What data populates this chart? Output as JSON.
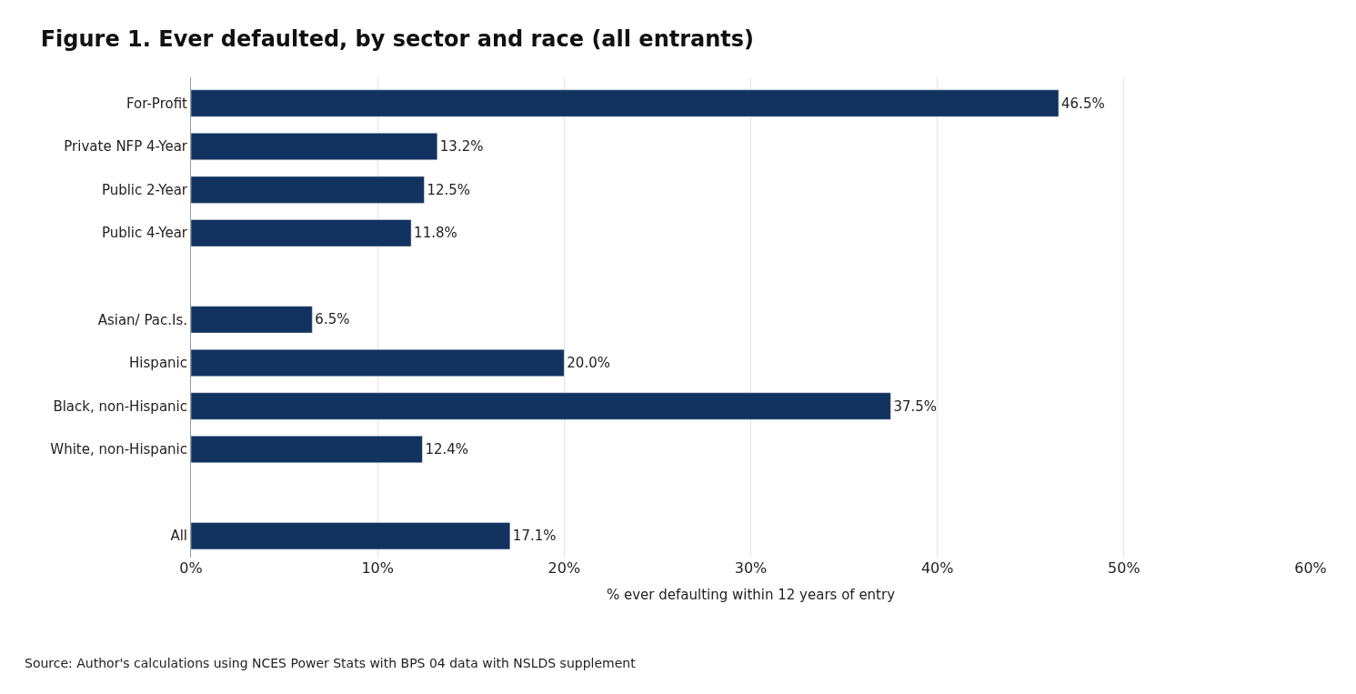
{
  "chart_data": {
    "type": "bar",
    "orientation": "horizontal",
    "title": "Figure 1. Ever defaulted, by sector and race (all entrants)",
    "categories": [
      "For-Profit",
      "Private NFP 4-Year",
      "Public 2-Year",
      "Public 4-Year",
      null,
      "Asian/ Pac.Is.",
      "Hispanic",
      "Black, non-Hispanic",
      "White, non-Hispanic",
      null,
      "All"
    ],
    "values": [
      46.5,
      13.2,
      12.5,
      11.8,
      null,
      6.5,
      20.0,
      37.5,
      12.4,
      null,
      17.1
    ],
    "value_labels": [
      "46.5%",
      "13.2%",
      "12.5%",
      "11.8%",
      null,
      "6.5%",
      "20.0%",
      "37.5%",
      "12.4%",
      null,
      "17.1%"
    ],
    "color": "#12325f",
    "xlim": [
      0,
      60
    ],
    "xticks": [
      {
        "value": 0,
        "label": "0%"
      },
      {
        "value": 10,
        "label": "10%"
      },
      {
        "value": 20,
        "label": "20%"
      },
      {
        "value": 30,
        "label": "30%"
      },
      {
        "value": 40,
        "label": "40%"
      },
      {
        "value": 50,
        "label": "50%"
      },
      {
        "value": 60,
        "label": "60%"
      }
    ],
    "xlabel": "% ever defaulting within 12 years of entry",
    "grid": "x",
    "legend": false,
    "annotations": [
      "Source: Author's calculations using NCES Power Stats with BPS 04 data with NSLDS supplement"
    ]
  }
}
